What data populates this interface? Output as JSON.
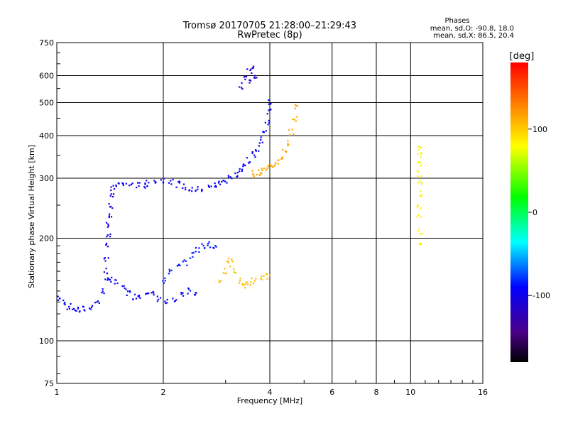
{
  "chart_data": {
    "type": "scatter",
    "title": "Tromsø 20170705 21:28:00–21:29:43",
    "subtitle": "RwPretec (8p)",
    "xlabel": "Frequency [MHz]",
    "ylabel": "Stationary phase Virtual Height [km]",
    "x_scale": "log",
    "y_scale": "log",
    "xlim": [
      1,
      16
    ],
    "ylim": [
      75,
      750
    ],
    "x_ticks": [
      1,
      2,
      4,
      6,
      8,
      10,
      16
    ],
    "y_ticks": [
      75,
      100,
      200,
      300,
      400,
      500,
      600,
      750
    ],
    "grid": true,
    "phase_stats": {
      "title": "Phases",
      "line_o": "mean, sd,O: -90.8, 18.0",
      "line_x": "mean, sd,X: 86.5, 20.4"
    },
    "colorbar": {
      "label": "[deg]",
      "ticks": [
        100,
        0,
        -100
      ],
      "range": [
        -180,
        180
      ]
    },
    "series": [
      {
        "trace": "o-mode-lower",
        "phase_deg": -95,
        "points": [
          [
            1.02,
            133
          ],
          [
            1.05,
            130
          ],
          [
            1.08,
            126
          ],
          [
            1.12,
            124
          ],
          [
            1.16,
            123
          ],
          [
            1.2,
            124
          ],
          [
            1.25,
            126
          ],
          [
            1.3,
            130
          ],
          [
            1.35,
            140
          ],
          [
            1.38,
            150
          ],
          [
            1.42,
            152
          ],
          [
            1.48,
            148
          ],
          [
            1.55,
            143
          ],
          [
            1.6,
            138
          ],
          [
            1.66,
            135
          ],
          [
            1.72,
            136
          ],
          [
            1.8,
            140
          ],
          [
            1.88,
            137
          ],
          [
            1.95,
            133
          ],
          [
            2.05,
            130
          ],
          [
            2.15,
            131
          ],
          [
            2.25,
            136
          ],
          [
            2.35,
            140
          ],
          [
            2.45,
            137
          ]
        ]
      },
      {
        "trace": "o-mode-vertical",
        "phase_deg": -100,
        "points": [
          [
            1.38,
            160
          ],
          [
            1.38,
            175
          ],
          [
            1.39,
            190
          ],
          [
            1.4,
            205
          ],
          [
            1.4,
            220
          ],
          [
            1.41,
            235
          ],
          [
            1.42,
            250
          ],
          [
            1.43,
            265
          ],
          [
            1.44,
            280
          ],
          [
            1.48,
            288
          ],
          [
            1.55,
            288
          ],
          [
            1.62,
            287
          ],
          [
            1.7,
            286
          ],
          [
            1.78,
            286
          ]
        ]
      },
      {
        "trace": "o-mode-upper",
        "phase_deg": -95,
        "points": [
          [
            1.8,
            290
          ],
          [
            1.9,
            295
          ],
          [
            2.0,
            297
          ],
          [
            2.1,
            293
          ],
          [
            2.2,
            288
          ],
          [
            2.3,
            283
          ],
          [
            2.4,
            279
          ],
          [
            2.5,
            278
          ],
          [
            2.6,
            279
          ],
          [
            2.7,
            282
          ],
          [
            2.8,
            286
          ],
          [
            2.9,
            291
          ],
          [
            3.0,
            296
          ],
          [
            3.1,
            302
          ],
          [
            3.2,
            308
          ],
          [
            3.3,
            316
          ],
          [
            3.4,
            326
          ],
          [
            3.5,
            338
          ],
          [
            3.6,
            352
          ],
          [
            3.7,
            368
          ],
          [
            3.8,
            388
          ],
          [
            3.88,
            410
          ],
          [
            3.93,
            440
          ],
          [
            3.97,
            470
          ],
          [
            3.99,
            500
          ]
        ]
      },
      {
        "trace": "o-mode-high",
        "phase_deg": -110,
        "points": [
          [
            3.3,
            560
          ],
          [
            3.4,
            590
          ],
          [
            3.5,
            620
          ],
          [
            3.6,
            640
          ],
          [
            3.65,
            600
          ],
          [
            3.55,
            580
          ]
        ]
      },
      {
        "trace": "o-mode-mid",
        "phase_deg": -85,
        "points": [
          [
            2.0,
            150
          ],
          [
            2.1,
            160
          ],
          [
            2.2,
            165
          ],
          [
            2.3,
            170
          ],
          [
            2.4,
            178
          ],
          [
            2.5,
            185
          ],
          [
            2.6,
            190
          ],
          [
            2.7,
            192
          ],
          [
            2.8,
            190
          ]
        ]
      },
      {
        "trace": "x-mode-upper",
        "phase_deg": 115,
        "points": [
          [
            3.6,
            310
          ],
          [
            3.7,
            312
          ],
          [
            3.8,
            315
          ],
          [
            3.9,
            318
          ],
          [
            4.0,
            322
          ],
          [
            4.1,
            328
          ],
          [
            4.2,
            336
          ],
          [
            4.3,
            346
          ],
          [
            4.4,
            360
          ],
          [
            4.5,
            380
          ],
          [
            4.6,
            410
          ],
          [
            4.7,
            450
          ],
          [
            4.75,
            490
          ]
        ]
      },
      {
        "trace": "x-mode-lower",
        "phase_deg": 105,
        "points": [
          [
            2.9,
            150
          ],
          [
            3.0,
            160
          ],
          [
            3.05,
            168
          ],
          [
            3.1,
            172
          ],
          [
            3.2,
            160
          ],
          [
            3.3,
            150
          ],
          [
            3.4,
            145
          ],
          [
            3.5,
            148
          ],
          [
            3.6,
            150
          ],
          [
            3.8,
            153
          ],
          [
            3.95,
            155
          ]
        ]
      },
      {
        "trace": "x-mode-10mhz",
        "phase_deg": 85,
        "points": [
          [
            10.6,
            190
          ],
          [
            10.6,
            210
          ],
          [
            10.6,
            230
          ],
          [
            10.6,
            250
          ],
          [
            10.6,
            270
          ],
          [
            10.6,
            290
          ],
          [
            10.6,
            310
          ],
          [
            10.6,
            330
          ],
          [
            10.6,
            350
          ],
          [
            10.6,
            370
          ]
        ]
      }
    ]
  }
}
